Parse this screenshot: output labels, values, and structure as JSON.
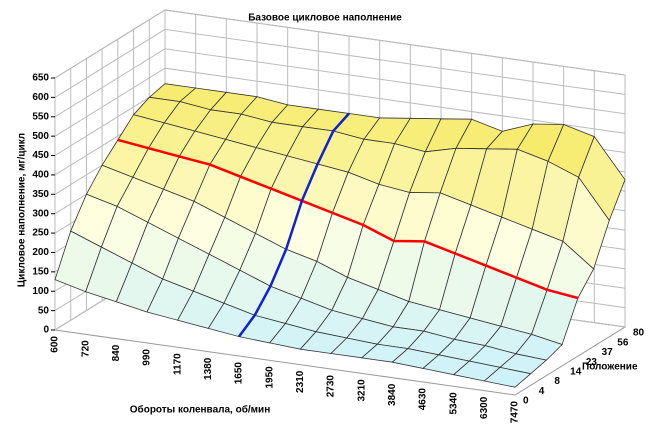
{
  "chart_data": {
    "type": "surface",
    "title": "Базовое цикловое наполнение",
    "x_label": "Обороты коленвала, об/мин",
    "y_label": "Цикловое наполнение, мг/цикл",
    "z_label": "Положение",
    "categories": [
      "600",
      "720",
      "840",
      "990",
      "1170",
      "1380",
      "1650",
      "1950",
      "2310",
      "2730",
      "3210",
      "3840",
      "4630",
      "5340",
      "6300",
      "7470"
    ],
    "series": [
      {
        "name": "0",
        "values": [
          130,
          110,
          95,
          80,
          70,
          60,
          50,
          45,
          40,
          40,
          40,
          40,
          35,
          30,
          25,
          20
        ]
      },
      {
        "name": "4",
        "values": [
          230,
          200,
          170,
          140,
          120,
          100,
          80,
          70,
          60,
          55,
          50,
          50,
          45,
          40,
          35,
          30
        ]
      },
      {
        "name": "8",
        "values": [
          300,
          280,
          250,
          220,
          190,
          160,
          130,
          110,
          90,
          80,
          70,
          70,
          60,
          55,
          45,
          40
        ]
      },
      {
        "name": "14",
        "values": [
          350,
          330,
          310,
          290,
          260,
          230,
          200,
          180,
          150,
          130,
          110,
          100,
          90,
          80,
          70,
          55
        ]
      },
      {
        "name": "23",
        "values": [
          390,
          380,
          370,
          360,
          340,
          320,
          300,
          280,
          260,
          230,
          240,
          220,
          200,
          180,
          160,
          150
        ]
      },
      {
        "name": "37",
        "values": [
          430,
          420,
          410,
          400,
          390,
          380,
          370,
          360,
          340,
          330,
          340,
          320,
          300,
          280,
          260,
          200
        ]
      },
      {
        "name": "56",
        "values": [
          450,
          450,
          440,
          440,
          430,
          430,
          430,
          420,
          420,
          410,
          430,
          440,
          450,
          430,
          400,
          300
        ]
      },
      {
        "name": "80",
        "values": [
          460,
          460,
          460,
          460,
          450,
          450,
          450,
          450,
          460,
          470,
          480,
          460,
          490,
          500,
          480,
          380
        ]
      }
    ],
    "ylim": [
      0,
      650
    ],
    "yticks": [
      0,
      50,
      100,
      150,
      200,
      250,
      300,
      350,
      400,
      450,
      500,
      550,
      600,
      650
    ]
  }
}
